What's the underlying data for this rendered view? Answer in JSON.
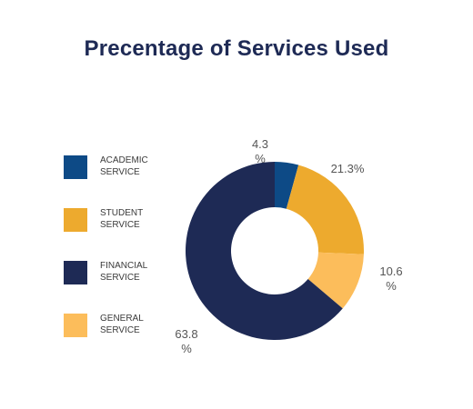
{
  "chart_data": {
    "type": "pie",
    "title": "Precentage of Services Used",
    "legend_position": "left",
    "categories": [
      "ACADEMIC SERVICE",
      "STUDENT SERVICE",
      "GENERAL SERVICE",
      "FINANCIAL SERVICE"
    ],
    "values": [
      4.3,
      21.3,
      10.6,
      63.8
    ],
    "labels": [
      [
        "4.3",
        "%"
      ],
      [
        "21.3%"
      ],
      [
        "10.6",
        "%"
      ],
      [
        "63.8",
        "%"
      ]
    ],
    "colors": [
      "#0d4a86",
      "#edaa2e",
      "#fcbd5b",
      "#1e2a55"
    ],
    "legend": [
      {
        "text": "ACADEMIC\nSERVICE",
        "color": "#0d4a86"
      },
      {
        "text": "STUDENT\nSERVICE",
        "color": "#edaa2e"
      },
      {
        "text": "FINANCIAL\nSERVICE",
        "color": "#1e2a55"
      },
      {
        "text": "GENERAL\nSERVICE",
        "color": "#fcbd5b"
      }
    ]
  }
}
